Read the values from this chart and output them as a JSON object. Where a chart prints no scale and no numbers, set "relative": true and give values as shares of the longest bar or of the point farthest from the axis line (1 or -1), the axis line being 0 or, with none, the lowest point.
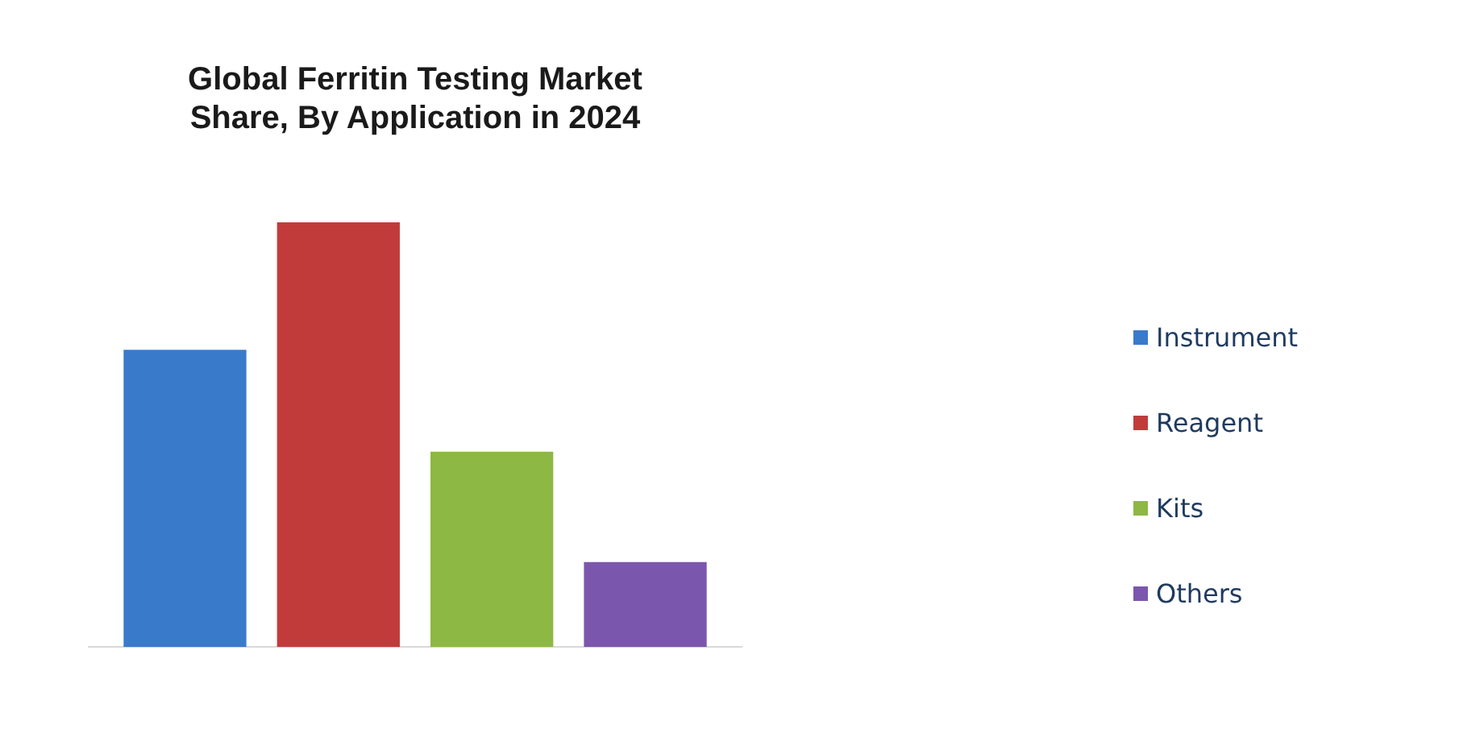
{
  "chart_data": {
    "type": "bar",
    "title": "Global Ferritin Testing Market\nShare, By Application in 2024",
    "relative": true,
    "categories": [
      null
    ],
    "legend": "right",
    "grid": false,
    "series": [
      {
        "name": "Instrument",
        "color": "#3a7acb",
        "values": [
          0.7
        ]
      },
      {
        "name": "Reagent",
        "color": "#c23b3b",
        "values": [
          1
        ]
      },
      {
        "name": "Kits",
        "color": "#8db843",
        "values": [
          0.46
        ]
      },
      {
        "name": "Others",
        "color": "#7b56ad",
        "values": [
          0.2
        ]
      }
    ]
  }
}
